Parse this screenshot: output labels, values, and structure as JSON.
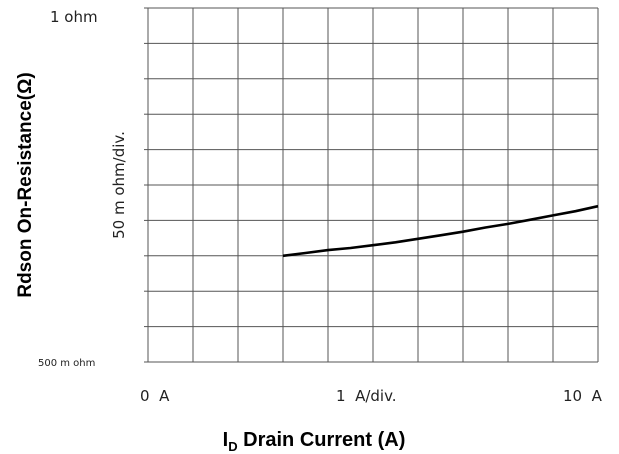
{
  "chart_data": {
    "type": "line",
    "title": "",
    "xlabel_main": "I",
    "xlabel_sub": "D",
    "xlabel_rest": " Drain Current (A)",
    "ylabel": "Rdson On-Resistance(Ω)",
    "y_scale_note": "50 m ohm/div.",
    "x_ticks": [
      "0  A",
      "1  A/div.",
      "10  A"
    ],
    "y_top_label": "1  ohm",
    "y_bottom_label": "500 m ohm",
    "xlim": [
      0,
      10
    ],
    "ylim": [
      0.5,
      1.0
    ],
    "grid": true,
    "series": [
      {
        "x": [
          3.0,
          3.5,
          4.0,
          4.5,
          5.0,
          5.5,
          6.0,
          6.5,
          7.0,
          7.5,
          8.0,
          8.5,
          9.0,
          9.5,
          10.0
        ],
        "y": [
          0.65,
          0.654,
          0.658,
          0.661,
          0.665,
          0.669,
          0.674,
          0.679,
          0.684,
          0.69,
          0.695,
          0.701,
          0.707,
          0.713,
          0.72
        ],
        "color": "#000000"
      }
    ]
  }
}
